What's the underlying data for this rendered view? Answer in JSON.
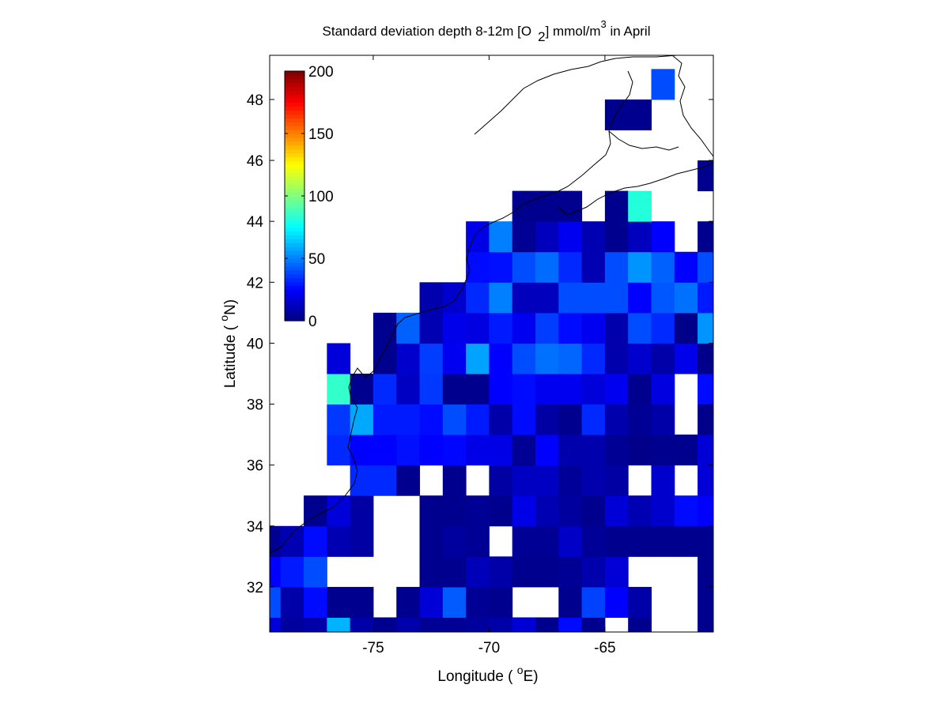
{
  "chart_data": {
    "type": "heatmap",
    "title_parts": {
      "pre": "Standard deviation depth 8-12m [O",
      "sub": "2",
      "mid": "] mmol/m",
      "sup": "3",
      "post": " in April"
    },
    "xlabel": {
      "pre": "Longitude ( ",
      "sup": "o",
      "post": "E)"
    },
    "ylabel": {
      "pre": "Latitude ( ",
      "sup": "o",
      "post": "N)"
    },
    "xlim": [
      -79.47,
      -60.32
    ],
    "ylim": [
      30.52,
      49.45
    ],
    "x_ticks": [
      -75,
      -70,
      -65
    ],
    "x_tick_labels": [
      "-75",
      "-70",
      "-65"
    ],
    "y_ticks": [
      32,
      34,
      36,
      38,
      40,
      42,
      44,
      46,
      48
    ],
    "y_tick_labels": [
      "32",
      "34",
      "36",
      "38",
      "40",
      "42",
      "44",
      "46",
      "48"
    ],
    "x_edges": [
      -80,
      -79,
      -78,
      -77,
      -76,
      -75,
      -74,
      -73,
      -72,
      -71,
      -70,
      -69,
      -68,
      -67,
      -66,
      -65,
      -64,
      -63,
      -62,
      -61,
      -60
    ],
    "y_edges": [
      30,
      31,
      32,
      33,
      34,
      35,
      36,
      37,
      38,
      39,
      40,
      41,
      42,
      43,
      44,
      45,
      46,
      47,
      48,
      49
    ],
    "values_rows_south_to_north": [
      [
        17,
        6,
        8,
        60,
        8,
        3,
        9,
        4,
        4,
        6,
        8,
        17,
        3,
        27,
        3,
        null,
        3,
        null,
        null,
        3
      ],
      [
        40,
        8,
        27,
        3,
        3,
        null,
        3,
        17,
        43,
        4,
        3,
        null,
        null,
        3,
        38,
        25,
        8,
        null,
        null,
        3
      ],
      [
        25,
        30,
        40,
        null,
        null,
        null,
        null,
        3,
        3,
        11,
        8,
        3,
        3,
        4,
        9,
        17,
        null,
        null,
        null,
        3
      ],
      [
        4,
        10,
        27,
        10,
        7,
        null,
        null,
        3,
        6,
        4,
        null,
        4,
        4,
        14,
        5,
        3,
        3,
        3,
        3,
        3
      ],
      [
        null,
        null,
        3,
        18,
        7,
        null,
        null,
        3,
        3,
        4,
        3,
        20,
        10,
        6,
        3,
        17,
        10,
        15,
        27,
        25
      ],
      [
        null,
        null,
        null,
        null,
        33,
        33,
        3,
        null,
        3,
        null,
        7,
        13,
        13,
        5,
        9,
        7,
        null,
        15,
        null,
        17
      ],
      [
        null,
        null,
        null,
        33,
        25,
        25,
        28,
        25,
        26,
        20,
        20,
        4,
        25,
        9,
        9,
        4,
        2,
        3,
        3,
        17
      ],
      [
        null,
        null,
        null,
        36,
        58,
        30,
        30,
        27,
        40,
        30,
        8,
        27,
        7,
        3,
        33,
        9,
        4,
        8,
        null,
        2
      ],
      [
        null,
        null,
        null,
        85,
        3,
        33,
        13,
        36,
        3,
        3,
        25,
        27,
        22,
        22,
        18,
        22,
        3,
        19,
        null,
        27
      ],
      [
        null,
        null,
        null,
        18,
        null,
        3,
        15,
        37,
        22,
        57,
        25,
        40,
        47,
        45,
        33,
        9,
        15,
        8,
        21,
        2
      ],
      [
        null,
        null,
        null,
        null,
        null,
        3,
        44,
        10,
        21,
        19,
        30,
        22,
        37,
        27,
        22,
        9,
        40,
        33,
        2,
        54
      ],
      [
        null,
        null,
        null,
        null,
        null,
        null,
        null,
        9,
        15,
        33,
        50,
        12,
        12,
        40,
        40,
        40,
        25,
        42,
        47,
        30
      ],
      [
        null,
        null,
        null,
        null,
        null,
        null,
        null,
        null,
        null,
        27,
        28,
        40,
        46,
        33,
        10,
        40,
        54,
        44,
        25,
        40
      ],
      [
        null,
        null,
        null,
        null,
        null,
        null,
        null,
        null,
        null,
        20,
        50,
        4,
        12,
        22,
        10,
        3,
        12,
        25,
        null,
        3
      ],
      [
        null,
        null,
        null,
        null,
        null,
        null,
        null,
        null,
        null,
        null,
        null,
        3,
        3,
        3,
        null,
        3,
        82,
        null,
        null,
        null
      ],
      [
        null,
        null,
        null,
        null,
        null,
        null,
        null,
        null,
        null,
        null,
        null,
        null,
        null,
        null,
        null,
        null,
        null,
        null,
        null,
        3
      ],
      [
        null,
        null,
        null,
        null,
        null,
        null,
        null,
        null,
        null,
        null,
        null,
        null,
        null,
        null,
        null,
        null,
        null,
        null,
        null,
        null
      ],
      [
        null,
        null,
        null,
        null,
        null,
        null,
        null,
        null,
        null,
        null,
        null,
        null,
        null,
        null,
        null,
        3,
        3,
        null,
        null,
        null
      ],
      [
        null,
        null,
        null,
        null,
        null,
        null,
        null,
        null,
        null,
        null,
        null,
        null,
        null,
        null,
        null,
        null,
        null,
        40,
        null,
        null
      ]
    ],
    "colormap": "jet",
    "clim": [
      0,
      200
    ],
    "colorbar": {
      "ticks": [
        0,
        50,
        100,
        150,
        200
      ],
      "tick_labels": [
        "0",
        "50",
        "100",
        "150",
        "200"
      ],
      "location": "top-left inside"
    },
    "missing_color": "#ffffff",
    "coastline_color": "#000000",
    "grid": false
  }
}
